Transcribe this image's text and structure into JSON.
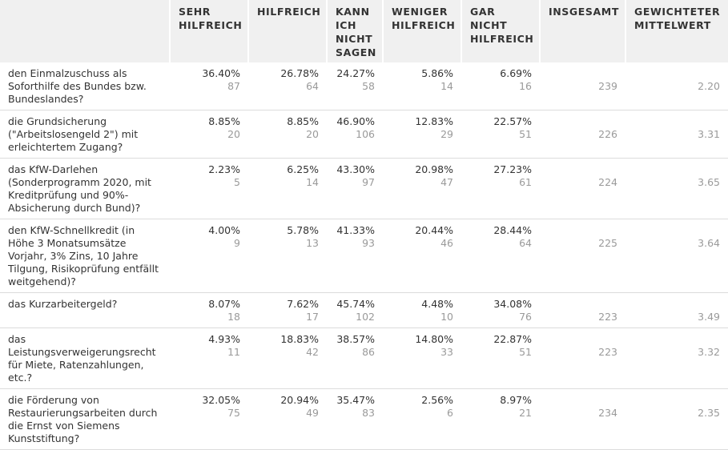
{
  "headers": [
    "",
    "SEHR HILFREICH",
    "HILFREICH",
    "KANN ICH NICHT SAGEN",
    "WENIGER HILFREICH",
    "GAR NICHT HILFREICH",
    "INSGESAMT",
    "GEWICHTETER MITTELWERT"
  ],
  "rows": [
    {
      "question": "den Einmalzuschuss als Soforthilfe des Bundes bzw. Bundeslandes?",
      "cells": [
        {
          "pct": "36.40%",
          "n": "87"
        },
        {
          "pct": "26.78%",
          "n": "64"
        },
        {
          "pct": "24.27%",
          "n": "58"
        },
        {
          "pct": "5.86%",
          "n": "14"
        },
        {
          "pct": "6.69%",
          "n": "16"
        }
      ],
      "total": "239",
      "avg": "2.20"
    },
    {
      "question": "die Grundsicherung (\"Arbeitslosengeld 2\") mit erleichtertem Zugang?",
      "cells": [
        {
          "pct": "8.85%",
          "n": "20"
        },
        {
          "pct": "8.85%",
          "n": "20"
        },
        {
          "pct": "46.90%",
          "n": "106"
        },
        {
          "pct": "12.83%",
          "n": "29"
        },
        {
          "pct": "22.57%",
          "n": "51"
        }
      ],
      "total": "226",
      "avg": "3.31"
    },
    {
      "question": "das KfW-Darlehen (Sonderprogramm 2020, mit Kreditprüfung und 90%-Absicherung durch Bund)?",
      "cells": [
        {
          "pct": "2.23%",
          "n": "5"
        },
        {
          "pct": "6.25%",
          "n": "14"
        },
        {
          "pct": "43.30%",
          "n": "97"
        },
        {
          "pct": "20.98%",
          "n": "47"
        },
        {
          "pct": "27.23%",
          "n": "61"
        }
      ],
      "total": "224",
      "avg": "3.65"
    },
    {
      "question": "den KfW-Schnellkredit (in Höhe 3 Monatsumsätze Vorjahr, 3% Zins, 10 Jahre Tilgung, Risikoprüfung entfällt weitgehend)?",
      "cells": [
        {
          "pct": "4.00%",
          "n": "9"
        },
        {
          "pct": "5.78%",
          "n": "13"
        },
        {
          "pct": "41.33%",
          "n": "93"
        },
        {
          "pct": "20.44%",
          "n": "46"
        },
        {
          "pct": "28.44%",
          "n": "64"
        }
      ],
      "total": "225",
      "avg": "3.64"
    },
    {
      "question": "das Kurzarbeitergeld?",
      "cells": [
        {
          "pct": "8.07%",
          "n": "18"
        },
        {
          "pct": "7.62%",
          "n": "17"
        },
        {
          "pct": "45.74%",
          "n": "102"
        },
        {
          "pct": "4.48%",
          "n": "10"
        },
        {
          "pct": "34.08%",
          "n": "76"
        }
      ],
      "total": "223",
      "avg": "3.49"
    },
    {
      "question": "das Leistungsverweigerungsrecht für Miete, Ratenzahlungen, etc.?",
      "cells": [
        {
          "pct": "4.93%",
          "n": "11"
        },
        {
          "pct": "18.83%",
          "n": "42"
        },
        {
          "pct": "38.57%",
          "n": "86"
        },
        {
          "pct": "14.80%",
          "n": "33"
        },
        {
          "pct": "22.87%",
          "n": "51"
        }
      ],
      "total": "223",
      "avg": "3.32"
    },
    {
      "question": "die Förderung von Restaurierungsarbeiten durch die Ernst von Siemens Kunststiftung?",
      "cells": [
        {
          "pct": "32.05%",
          "n": "75"
        },
        {
          "pct": "20.94%",
          "n": "49"
        },
        {
          "pct": "35.47%",
          "n": "83"
        },
        {
          "pct": "2.56%",
          "n": "6"
        },
        {
          "pct": "8.97%",
          "n": "21"
        }
      ],
      "total": "234",
      "avg": "2.35"
    }
  ]
}
